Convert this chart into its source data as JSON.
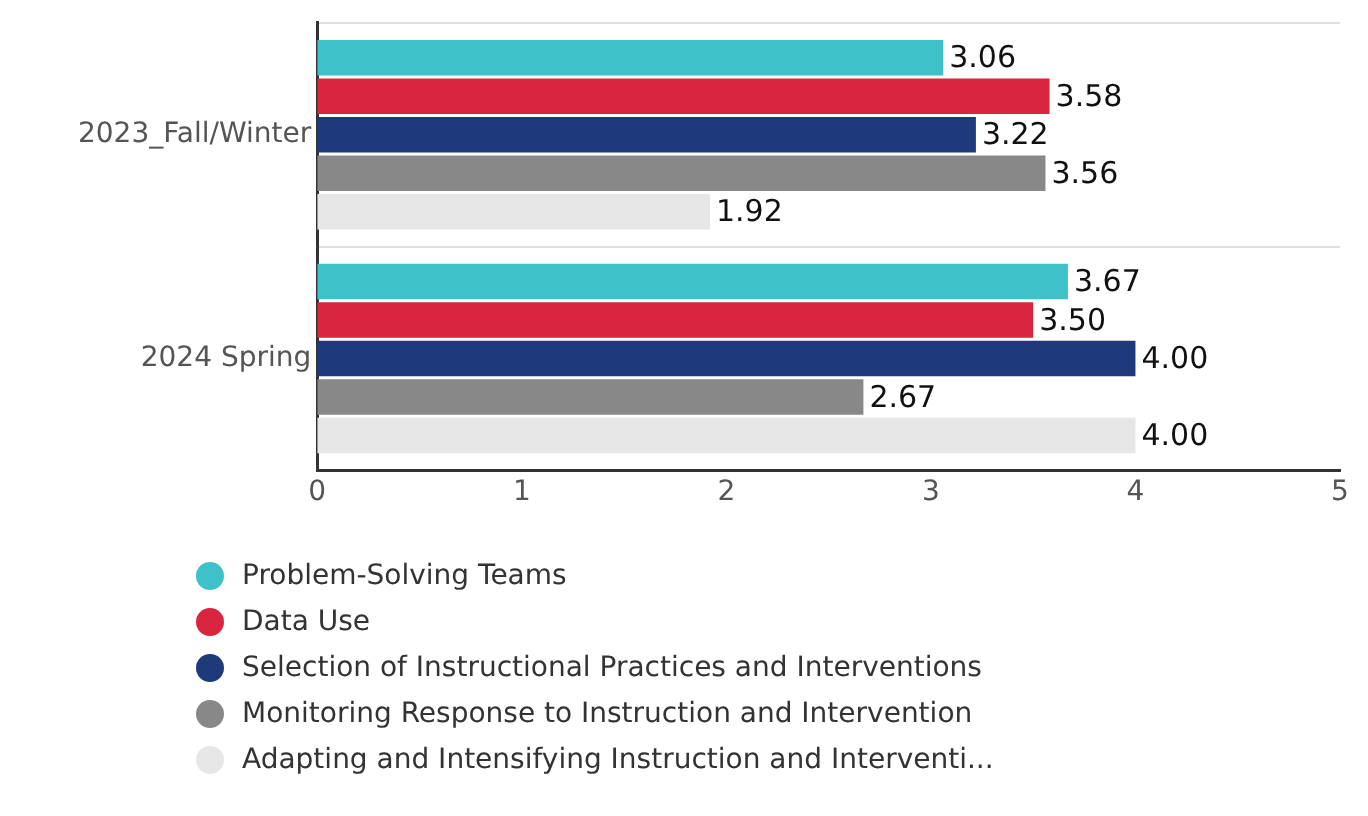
{
  "chart_data": {
    "type": "bar",
    "orientation": "horizontal",
    "categories": [
      "2023_Fall/Winter",
      "2024 Spring"
    ],
    "series": [
      {
        "name": "Problem-Solving Teams",
        "color": "#3fc1c9",
        "values": [
          3.06,
          3.67
        ]
      },
      {
        "name": "Data Use",
        "color": "#d7263d",
        "values": [
          3.58,
          3.5
        ]
      },
      {
        "name": "Selection of Instructional Practices and Interventions",
        "color": "#1f3a7a",
        "values": [
          3.22,
          4.0
        ]
      },
      {
        "name": "Monitoring Response to Instruction and Intervention",
        "color": "#888888",
        "values": [
          3.56,
          2.67
        ]
      },
      {
        "name": "Adapting and Intensifying Instruction and Interventi...",
        "color": "#e6e6e6",
        "values": [
          1.92,
          4.0
        ]
      }
    ],
    "value_labels": [
      [
        "3.06",
        "3.67"
      ],
      [
        "3.58",
        "3.50"
      ],
      [
        "3.22",
        "4.00"
      ],
      [
        "3.56",
        "2.67"
      ],
      [
        "1.92",
        "4.00"
      ]
    ],
    "xlim": [
      0,
      5
    ],
    "xticks": [
      0,
      1,
      2,
      3,
      4,
      5
    ],
    "grid": "y",
    "legend": "bottom left"
  }
}
